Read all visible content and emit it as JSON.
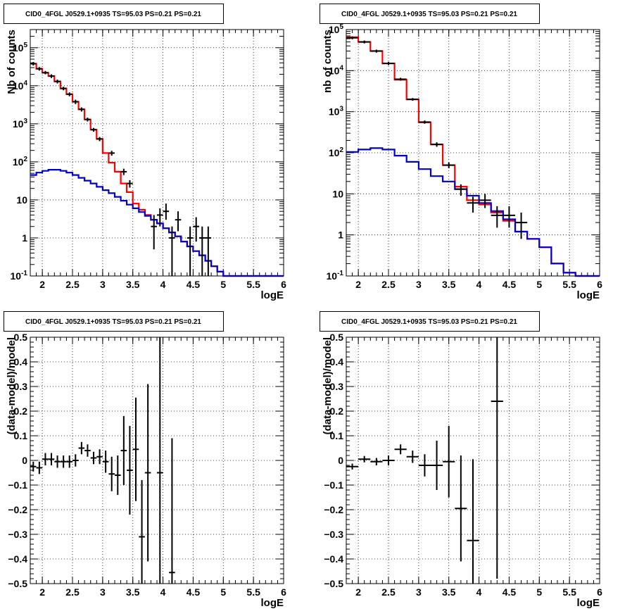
{
  "title_text": "CID0_4FGL J0529.1+0935 TS=95.03 PS=0.21 PS=0.21",
  "chart_data": [
    {
      "type": "line",
      "title": "CID0_4FGL J0529.1+0935 TS=95.03 PS=0.21 PS=0.21",
      "xlabel": "logE",
      "ylabel": "Nb of counts",
      "xlim": [
        1.8,
        6.0
      ],
      "ylim": [
        0.1,
        300000
      ],
      "yscale": "log",
      "grid": true,
      "x_ticks": [
        "2",
        "2.5",
        "3",
        "3.5",
        "4",
        "4.5",
        "5",
        "5.5",
        "6"
      ],
      "y_ticks": [
        "10^-1",
        "1",
        "10",
        "10^2",
        "10^3",
        "10^4",
        "10^5"
      ],
      "series": [
        {
          "color": "#ff0000",
          "bin_width": 0.1,
          "x": [
            1.85,
            1.95,
            2.05,
            2.15,
            2.25,
            2.35,
            2.45,
            2.55,
            2.65,
            2.75,
            2.85,
            2.95,
            3.05,
            3.15,
            3.25,
            3.35,
            3.45,
            3.55,
            3.65,
            3.75,
            3.85,
            3.95,
            4.05,
            4.15,
            4.25,
            4.35,
            4.45,
            4.55,
            4.65,
            4.75,
            4.85,
            4.95,
            5.05,
            5.15,
            5.25,
            5.35,
            5.45,
            5.55,
            5.65,
            5.75,
            5.85,
            5.95
          ],
          "values": [
            38000,
            28000,
            22000,
            18000,
            13000,
            8500,
            6000,
            3800,
            2400,
            1300,
            700,
            400,
            170,
            95,
            55,
            27,
            16,
            8,
            5.5,
            4,
            3,
            2.4,
            1.8,
            1.4,
            1.1,
            0.8,
            0.6,
            0.45,
            0.35,
            0.25,
            0.18,
            0.13,
            0.1,
            0.1,
            0.1,
            0.1,
            0.1,
            0.1,
            0.1,
            0.1,
            0.1,
            0.1
          ]
        },
        {
          "color": "#0000cc",
          "bin_width": 0.1,
          "x": [
            1.85,
            1.95,
            2.05,
            2.15,
            2.25,
            2.35,
            2.45,
            2.55,
            2.65,
            2.75,
            2.85,
            2.95,
            3.05,
            3.15,
            3.25,
            3.35,
            3.45,
            3.55,
            3.65,
            3.75,
            3.85,
            3.95,
            4.05,
            4.15,
            4.25,
            4.35,
            4.45,
            4.55,
            4.65,
            4.75,
            4.85,
            4.95,
            5.05,
            5.15,
            5.25,
            5.35,
            5.45,
            5.55,
            5.65,
            5.75,
            5.85,
            5.95
          ],
          "values": [
            45,
            52,
            58,
            62,
            62,
            58,
            52,
            45,
            38,
            32,
            27,
            22,
            18,
            15,
            12,
            9.5,
            7.5,
            6,
            4.8,
            3.8,
            3,
            2.4,
            1.8,
            1.4,
            1.1,
            0.8,
            0.6,
            0.45,
            0.35,
            0.25,
            0.18,
            0.13,
            0.1,
            0.1,
            0.1,
            0.1,
            0.1,
            0.1,
            0.1,
            0.1,
            0.1,
            0.1
          ]
        }
      ],
      "points": [
        {
          "x": 1.85,
          "y": 38000,
          "elo": 34000,
          "ehi": 42000
        },
        {
          "x": 1.95,
          "y": 28000,
          "elo": 25000,
          "ehi": 31000
        },
        {
          "x": 2.05,
          "y": 22000,
          "elo": 20000,
          "ehi": 24500
        },
        {
          "x": 2.15,
          "y": 18000,
          "elo": 16000,
          "ehi": 20000
        },
        {
          "x": 2.25,
          "y": 13000,
          "elo": 11500,
          "ehi": 14500
        },
        {
          "x": 2.35,
          "y": 8500,
          "elo": 7600,
          "ehi": 9400
        },
        {
          "x": 2.45,
          "y": 6000,
          "elo": 5300,
          "ehi": 6700
        },
        {
          "x": 2.55,
          "y": 3800,
          "elo": 3300,
          "ehi": 4300
        },
        {
          "x": 2.65,
          "y": 2400,
          "elo": 2100,
          "ehi": 2700
        },
        {
          "x": 2.75,
          "y": 1300,
          "elo": 1150,
          "ehi": 1450
        },
        {
          "x": 2.85,
          "y": 700,
          "elo": 620,
          "ehi": 780
        },
        {
          "x": 2.95,
          "y": 400,
          "elo": 350,
          "ehi": 450
        },
        {
          "x": 3.15,
          "y": 170,
          "elo": 145,
          "ehi": 195
        },
        {
          "x": 3.35,
          "y": 55,
          "elo": 45,
          "ehi": 66
        },
        {
          "x": 3.45,
          "y": 27,
          "elo": 21,
          "ehi": 33
        },
        {
          "x": 3.85,
          "y": 2,
          "elo": 0.5,
          "ehi": 4
        },
        {
          "x": 3.95,
          "y": 4,
          "elo": 2,
          "ehi": 6
        },
        {
          "x": 4.05,
          "y": 5,
          "elo": 3,
          "ehi": 8
        },
        {
          "x": 4.15,
          "y": 1,
          "elo": 0.1,
          "ehi": 2
        },
        {
          "x": 4.25,
          "y": 3,
          "elo": 1.5,
          "ehi": 5
        },
        {
          "x": 4.45,
          "y": 1,
          "elo": 0.1,
          "ehi": 2
        },
        {
          "x": 4.55,
          "y": 2,
          "elo": 0.8,
          "ehi": 3.5
        },
        {
          "x": 4.65,
          "y": 1,
          "elo": 0.1,
          "ehi": 2
        },
        {
          "x": 4.75,
          "y": 1,
          "elo": 0.1,
          "ehi": 2
        }
      ]
    },
    {
      "type": "line",
      "title": "CID0_4FGL J0529.1+0935 TS=95.03 PS=0.21 PS=0.21",
      "xlabel": "logE",
      "ylabel": "nb of counts",
      "xlim": [
        1.8,
        6.0
      ],
      "ylim": [
        0.1,
        100000
      ],
      "yscale": "log",
      "grid": true,
      "x_ticks": [
        "2",
        "2.5",
        "3",
        "3.5",
        "4",
        "4.5",
        "5",
        "5.5",
        "6"
      ],
      "y_ticks": [
        "10^-1",
        "1",
        "10",
        "10^2",
        "10^3",
        "10^4",
        "10^5"
      ],
      "series": [
        {
          "color": "#ff0000",
          "bin_width": 0.2,
          "x": [
            1.9,
            2.1,
            2.3,
            2.5,
            2.7,
            2.9,
            3.1,
            3.3,
            3.5,
            3.7,
            3.9,
            4.1,
            4.3,
            4.5,
            4.7,
            4.9,
            5.1,
            5.3,
            5.5,
            5.7,
            5.9
          ],
          "values": [
            65000,
            50000,
            30000,
            15000,
            6000,
            2000,
            550,
            160,
            50,
            15,
            7,
            5.5,
            3.5,
            2.2,
            1.2,
            0.8,
            0.5,
            0.2,
            0.12,
            0.1,
            0.1
          ]
        },
        {
          "color": "#0000cc",
          "bin_width": 0.2,
          "x": [
            1.9,
            2.1,
            2.3,
            2.5,
            2.7,
            2.9,
            3.1,
            3.3,
            3.5,
            3.7,
            3.9,
            4.1,
            4.3,
            4.5,
            4.7,
            4.9,
            5.1,
            5.3,
            5.5,
            5.7,
            5.9
          ],
          "values": [
            105,
            120,
            130,
            120,
            85,
            60,
            40,
            27,
            20,
            13,
            9,
            6,
            3.8,
            2.4,
            1.2,
            0.8,
            0.5,
            0.2,
            0.12,
            0.1,
            0.1
          ]
        }
      ],
      "points": [
        {
          "x": 1.9,
          "y": 63000,
          "elo": 58000,
          "ehi": 68000
        },
        {
          "x": 2.1,
          "y": 50000,
          "elo": 46000,
          "ehi": 54000
        },
        {
          "x": 2.3,
          "y": 30000,
          "elo": 27500,
          "ehi": 32500
        },
        {
          "x": 2.5,
          "y": 15000,
          "elo": 13600,
          "ehi": 16400
        },
        {
          "x": 2.7,
          "y": 6200,
          "elo": 5700,
          "ehi": 6700
        },
        {
          "x": 2.9,
          "y": 2000,
          "elo": 1850,
          "ehi": 2150
        },
        {
          "x": 3.1,
          "y": 560,
          "elo": 510,
          "ehi": 610
        },
        {
          "x": 3.3,
          "y": 160,
          "elo": 140,
          "ehi": 180
        },
        {
          "x": 3.5,
          "y": 50,
          "elo": 42,
          "ehi": 58
        },
        {
          "x": 3.7,
          "y": 13,
          "elo": 9,
          "ehi": 17
        },
        {
          "x": 3.9,
          "y": 6,
          "elo": 3.5,
          "ehi": 8.5
        },
        {
          "x": 4.1,
          "y": 7,
          "elo": 4.5,
          "ehi": 10
        },
        {
          "x": 4.3,
          "y": 3,
          "elo": 1.5,
          "ehi": 5
        },
        {
          "x": 4.5,
          "y": 3,
          "elo": 1.5,
          "ehi": 5
        },
        {
          "x": 4.7,
          "y": 2,
          "elo": 0.8,
          "ehi": 3.5
        }
      ]
    },
    {
      "type": "scatter",
      "title": "CID0_4FGL J0529.1+0935 TS=95.03 PS=0.21 PS=0.21",
      "xlabel": "logE",
      "ylabel": "(data-model)/model",
      "xlim": [
        1.8,
        6.0
      ],
      "ylim": [
        -0.5,
        0.5
      ],
      "grid": true,
      "x_ticks": [
        "2",
        "2.5",
        "3",
        "3.5",
        "4",
        "4.5",
        "5",
        "5.5",
        "6"
      ],
      "y_ticks": [
        "−0.5",
        "−0.4",
        "−0.3",
        "−0.2",
        "−0.1",
        "0",
        "0.1",
        "0.2",
        "0.3",
        "0.4",
        "0.5"
      ],
      "bin_width": 0.1,
      "points": [
        {
          "x": 1.85,
          "y": -0.025,
          "err": 0.02
        },
        {
          "x": 1.95,
          "y": -0.03,
          "err": 0.025
        },
        {
          "x": 2.05,
          "y": 0.005,
          "err": 0.025
        },
        {
          "x": 2.15,
          "y": 0.005,
          "err": 0.025
        },
        {
          "x": 2.25,
          "y": -0.005,
          "err": 0.025
        },
        {
          "x": 2.35,
          "y": -0.005,
          "err": 0.025
        },
        {
          "x": 2.45,
          "y": -0.005,
          "err": 0.025
        },
        {
          "x": 2.55,
          "y": 0.0,
          "err": 0.025
        },
        {
          "x": 2.65,
          "y": 0.05,
          "err": 0.025
        },
        {
          "x": 2.75,
          "y": 0.04,
          "err": 0.025
        },
        {
          "x": 2.85,
          "y": 0.01,
          "err": 0.025
        },
        {
          "x": 2.95,
          "y": 0.015,
          "err": 0.03
        },
        {
          "x": 3.05,
          "y": -0.005,
          "err": 0.045
        },
        {
          "x": 3.15,
          "y": -0.055,
          "err": 0.07
        },
        {
          "x": 3.25,
          "y": -0.06,
          "err": 0.08
        },
        {
          "x": 3.35,
          "y": 0.04,
          "err": 0.14
        },
        {
          "x": 3.45,
          "y": -0.04,
          "err": 0.18
        },
        {
          "x": 3.55,
          "y": 0.045,
          "err": 0.21
        },
        {
          "x": 3.65,
          "y": -0.31,
          "err": 0.23
        },
        {
          "x": 3.75,
          "y": -0.05,
          "err": 0.36
        },
        {
          "x": 3.95,
          "y": -0.05,
          "err": 0.56
        },
        {
          "x": 4.15,
          "y": -0.455,
          "err": 0.545
        }
      ]
    },
    {
      "type": "scatter",
      "title": "CID0_4FGL J0529.1+0935 TS=95.03 PS=0.21 PS=0.21",
      "xlabel": "logE",
      "ylabel": "(data-model)/model",
      "xlim": [
        1.8,
        6.0
      ],
      "ylim": [
        -0.5,
        0.5
      ],
      "grid": true,
      "x_ticks": [
        "2",
        "2.5",
        "3",
        "3.5",
        "4",
        "4.5",
        "5",
        "5.5",
        "6"
      ],
      "y_ticks": [
        "−0.5",
        "−0.4",
        "−0.3",
        "−0.2",
        "−0.1",
        "0",
        "0.1",
        "0.2",
        "0.3",
        "0.4",
        "0.5"
      ],
      "bin_width": 0.2,
      "points": [
        {
          "x": 1.9,
          "y": -0.025,
          "err": 0.012
        },
        {
          "x": 2.1,
          "y": 0.005,
          "err": 0.013
        },
        {
          "x": 2.3,
          "y": -0.005,
          "err": 0.015
        },
        {
          "x": 2.5,
          "y": 0.0,
          "err": 0.02
        },
        {
          "x": 2.7,
          "y": 0.045,
          "err": 0.02
        },
        {
          "x": 2.9,
          "y": 0.015,
          "err": 0.025
        },
        {
          "x": 3.1,
          "y": -0.02,
          "err": 0.045
        },
        {
          "x": 3.3,
          "y": -0.02,
          "err": 0.1
        },
        {
          "x": 3.5,
          "y": -0.005,
          "err": 0.145
        },
        {
          "x": 3.7,
          "y": -0.195,
          "err": 0.215
        },
        {
          "x": 3.9,
          "y": -0.325,
          "err": 0.33
        },
        {
          "x": 4.3,
          "y": 0.24,
          "err": 0.72
        }
      ]
    }
  ]
}
